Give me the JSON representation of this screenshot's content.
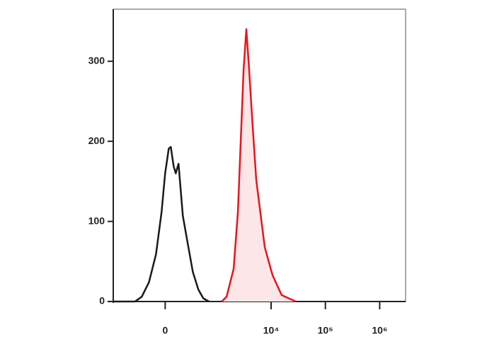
{
  "chart_data": {
    "type": "histogram-overlay",
    "xscale": "arcsinh",
    "xlim": [
      -1000,
      3000000
    ],
    "xticks": [
      0,
      {
        "value": 10000,
        "label": "10⁴"
      },
      {
        "value": 100000,
        "label": "10⁵"
      },
      {
        "value": 1000000,
        "label": "10⁶"
      }
    ],
    "ylim": [
      0,
      365
    ],
    "yticks": [
      0,
      100,
      200,
      300
    ],
    "series": [
      {
        "color": "#1a1a1a",
        "fill": "none",
        "x": [
          -1000,
          -370,
          -260,
          -167,
          -89,
          -34,
          0,
          34,
          54,
          82,
          104,
          134,
          159,
          184,
          249,
          327,
          430,
          542,
          699
        ],
        "values": [
          0,
          0,
          6,
          24,
          59,
          112,
          160,
          191,
          193,
          169,
          160,
          172,
          138,
          107,
          72,
          37,
          15,
          4,
          0
        ]
      },
      {
        "color": "#e8141c",
        "fill": "#fde6e8",
        "x": [
          1219,
          1507,
          2038,
          2442,
          2755,
          3105,
          3500,
          3947,
          4588,
          5325,
          7634,
          10607,
          15657,
          28493
        ],
        "values": [
          0,
          6,
          41,
          112,
          200,
          289,
          340,
          289,
          218,
          152,
          68,
          33,
          8,
          0
        ]
      }
    ]
  }
}
